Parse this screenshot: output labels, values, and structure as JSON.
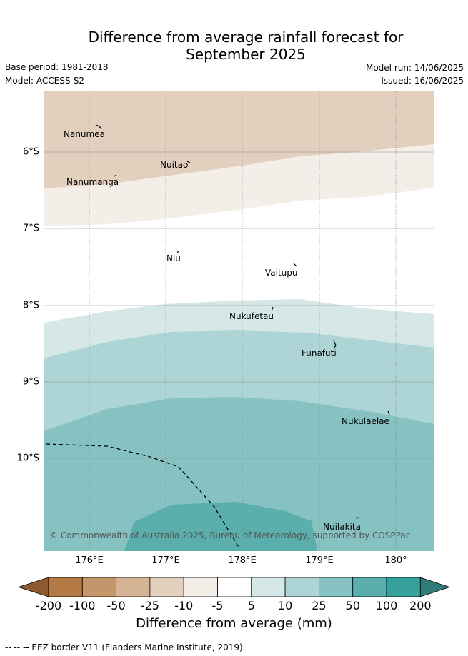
{
  "header": {
    "title_line1": "Difference from average rainfall forecast for",
    "title_line2": "September 2025",
    "base_period": "Base period: 1981-2018",
    "model": "Model: ACCESS-S2",
    "model_run": "Model run: 14/06/2025",
    "issued": "Issued: 16/06/2025"
  },
  "map": {
    "lon_ticks": [
      "176°E",
      "177°E",
      "178°E",
      "179°E",
      "180°"
    ],
    "lat_ticks": [
      "6°S",
      "7°S",
      "8°S",
      "9°S",
      "10°S"
    ],
    "places": [
      {
        "name": "Nanumea"
      },
      {
        "name": "Nuitao"
      },
      {
        "name": "Nanumanga"
      },
      {
        "name": "Niu"
      },
      {
        "name": "Vaitupu"
      },
      {
        "name": "Nukufetau"
      },
      {
        "name": "Funafuti"
      },
      {
        "name": "Nukulaelae"
      },
      {
        "name": "Nuilakita"
      }
    ],
    "copyright": "© Commonwealth of Australia 2025, Bureau of Meteorology, supported by COSPPac"
  },
  "colorbar": {
    "labels": [
      "-200",
      "-100",
      "-50",
      "-25",
      "-10",
      "-5",
      "5",
      "10",
      "25",
      "50",
      "100",
      "200"
    ],
    "colors": [
      "#8c5a2e",
      "#b37a45",
      "#c4976b",
      "#d4b494",
      "#e3cfbd",
      "#f3eee8",
      "#ffffff",
      "#d5e8e7",
      "#aed5d5",
      "#85c2c1",
      "#5aaeac",
      "#36a09c",
      "#2e7b78"
    ],
    "title": "Difference from average (mm)"
  },
  "footer": {
    "legend": "--  --  -- EEZ border V11 (Flanders Marine Institute, 2019)."
  }
}
